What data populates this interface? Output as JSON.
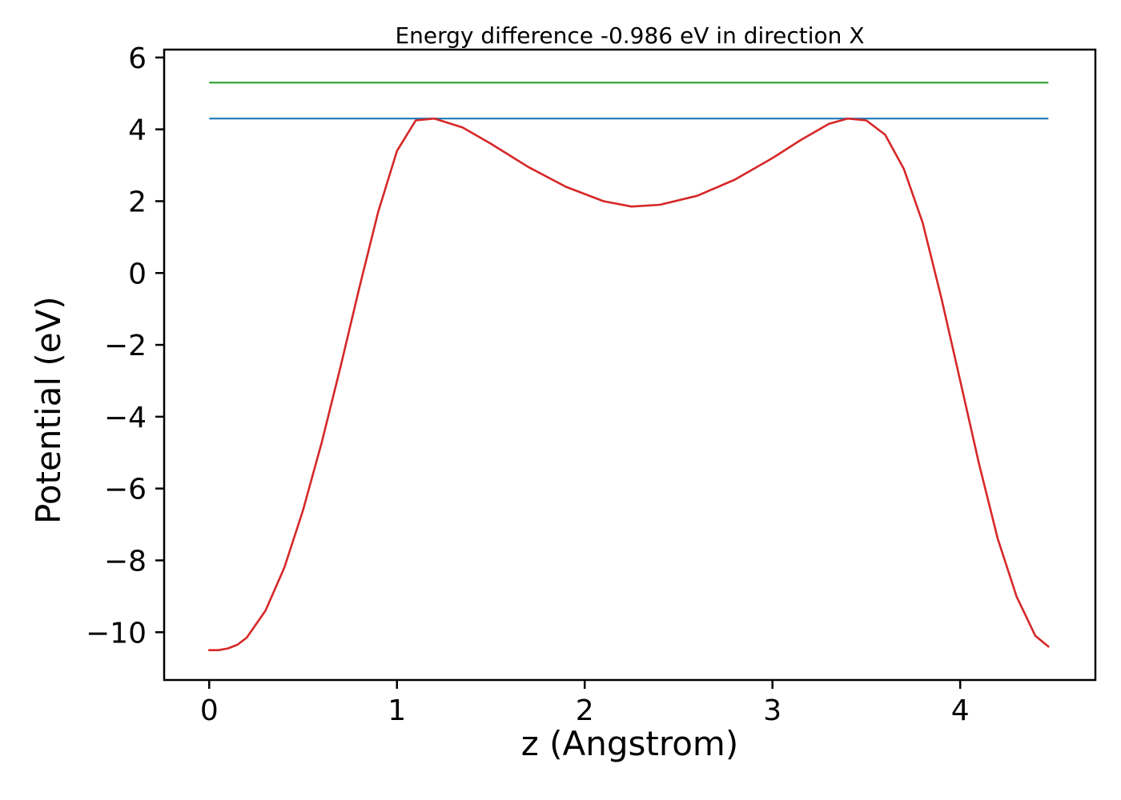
{
  "chart_data": {
    "type": "line",
    "title": "Energy difference -0.986 eV in direction X",
    "xlabel": "z (Angstrom)",
    "ylabel": "Potential (eV)",
    "xlim": [
      -0.24,
      4.72
    ],
    "ylim": [
      -11.33,
      6.22
    ],
    "xticks": [
      0,
      1,
      2,
      3,
      4
    ],
    "yticks": [
      6,
      4,
      2,
      0,
      -2,
      -4,
      -6,
      -8,
      -10
    ],
    "grid": false,
    "colors": {
      "potential_curve": "#d62728",
      "level_line_blue": "#1f77b4",
      "level_line_green": "#2ca02c",
      "axis": "#000000"
    },
    "series": [
      {
        "name": "reference-level-green",
        "kind": "hline",
        "color": "#2ca02c",
        "y": 5.3,
        "x_start": 0.0,
        "x_end": 4.47
      },
      {
        "name": "reference-level-blue",
        "kind": "hline",
        "color": "#1f77b4",
        "y": 4.3,
        "x_start": 0.0,
        "x_end": 4.47
      },
      {
        "name": "potential-curve",
        "kind": "curve",
        "color": "#d62728",
        "x": [
          0,
          0.05,
          0.1,
          0.15,
          0.2,
          0.3,
          0.4,
          0.5,
          0.6,
          0.7,
          0.8,
          0.9,
          1.0,
          1.1,
          1.2,
          1.35,
          1.5,
          1.7,
          1.9,
          2.1,
          2.25,
          2.4,
          2.6,
          2.8,
          3.0,
          3.15,
          3.3,
          3.4,
          3.5,
          3.6,
          3.7,
          3.8,
          3.9,
          4.0,
          4.1,
          4.2,
          4.3,
          4.4,
          4.47
        ],
        "y": [
          -10.5,
          -10.5,
          -10.45,
          -10.35,
          -10.15,
          -9.4,
          -8.2,
          -6.6,
          -4.7,
          -2.6,
          -0.4,
          1.7,
          3.4,
          4.25,
          4.3,
          4.05,
          3.6,
          2.95,
          2.4,
          2.0,
          1.85,
          1.9,
          2.15,
          2.6,
          3.2,
          3.7,
          4.15,
          4.3,
          4.25,
          3.85,
          2.9,
          1.4,
          -0.7,
          -3.0,
          -5.3,
          -7.4,
          -9.0,
          -10.1,
          -10.4
        ]
      }
    ]
  }
}
